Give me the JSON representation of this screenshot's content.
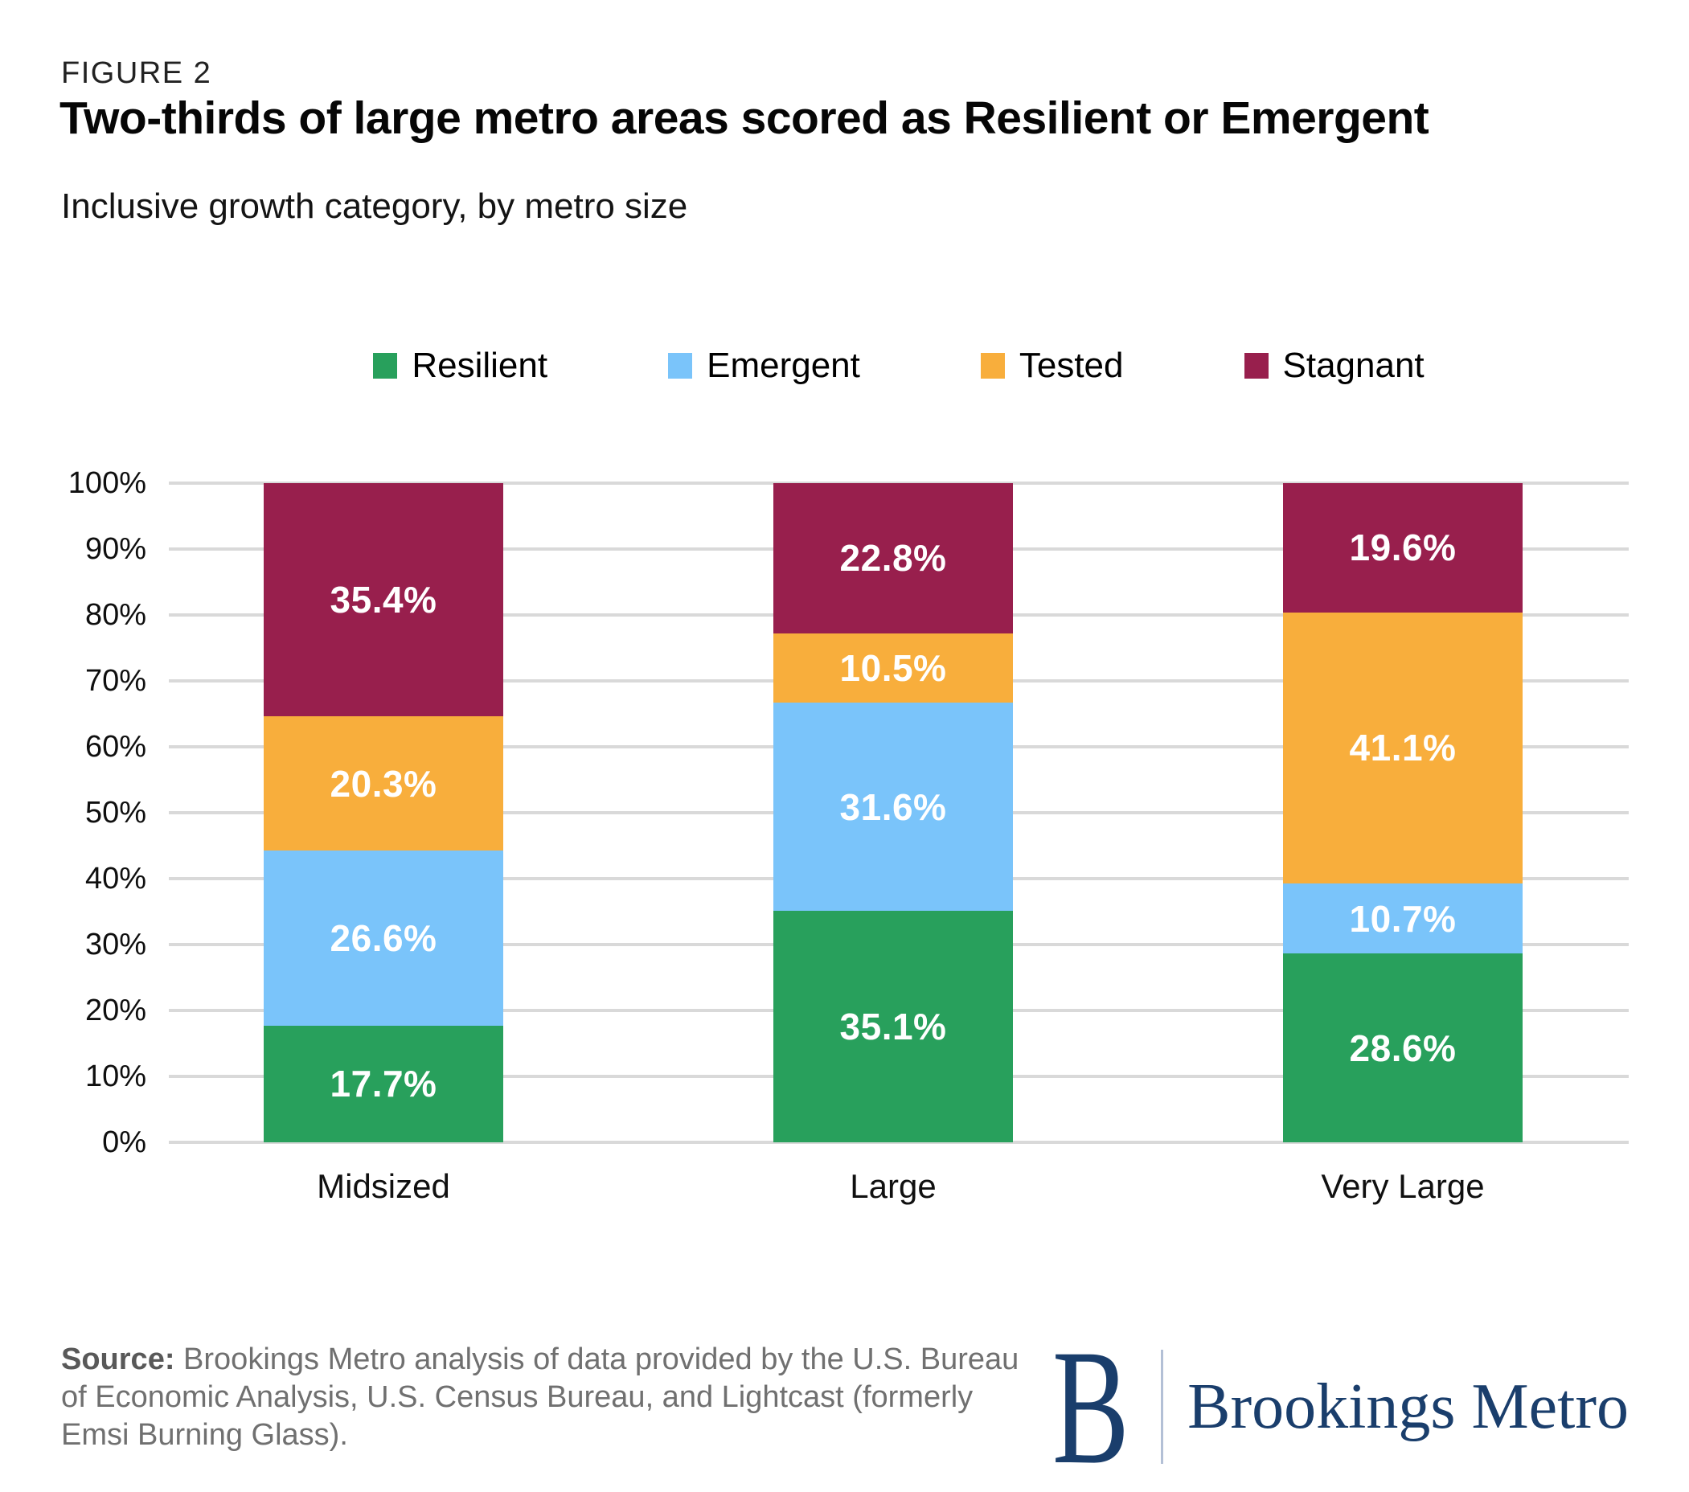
{
  "figure_label": "FIGURE 2",
  "title": "Two-thirds of large metro areas scored as Resilient or Emergent",
  "subtitle": "Inclusive growth category, by metro size",
  "chart_data": {
    "type": "bar",
    "variant": "stacked-percent-column",
    "title": "Two-thirds of large metro areas scored as Resilient or Emergent",
    "subtitle": "Inclusive growth category, by metro size",
    "categories": [
      "Midsized",
      "Large",
      "Very Large"
    ],
    "series": [
      {
        "name": "Resilient",
        "color": "#28a05c",
        "values": [
          17.7,
          35.1,
          28.6
        ]
      },
      {
        "name": "Emergent",
        "color": "#7ac4fa",
        "values": [
          26.6,
          31.6,
          10.7
        ]
      },
      {
        "name": "Tested",
        "color": "#f8ae3c",
        "values": [
          20.3,
          10.5,
          41.1
        ]
      },
      {
        "name": "Stagnant",
        "color": "#981f4d",
        "values": [
          35.4,
          22.8,
          19.6
        ]
      }
    ],
    "value_suffix": "%",
    "data_label_color": "#ffffff",
    "y_ticks": [
      "0%",
      "10%",
      "20%",
      "30%",
      "40%",
      "50%",
      "60%",
      "70%",
      "80%",
      "90%",
      "100%"
    ],
    "ylim": [
      0,
      100
    ],
    "grid": true,
    "gridline_color": "#d9d9d9",
    "legend_position": "top"
  },
  "footer": {
    "source_label": "Source:",
    "source_lines": [
      "Brookings Metro analysis of data provided by the U.S. Bureau",
      "of Economic Analysis, U.S. Census Bureau, and Lightcast (formerly",
      "Emsi Burning Glass)."
    ],
    "logo": {
      "monogram": "B",
      "wordmark": "Brookings Metro",
      "color": "#1a3e6c"
    }
  }
}
